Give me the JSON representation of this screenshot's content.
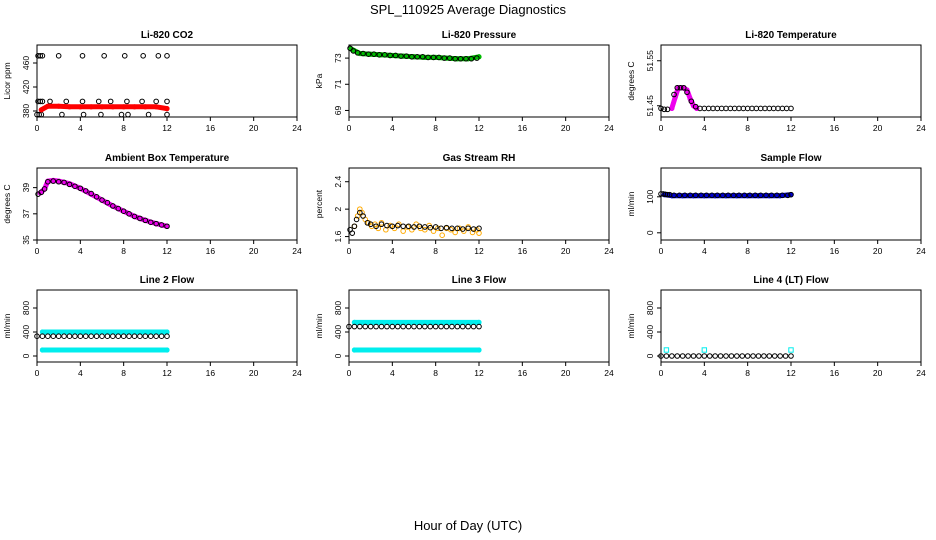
{
  "figure": {
    "title": "SPL_110925  Average Diagnostics",
    "xlabel": "Hour of Day (UTC)"
  },
  "chart_data": [
    {
      "type": "scatter",
      "title": "Li-820 CO2",
      "ylabel": "Licor ppm",
      "xlim": [
        0,
        24
      ],
      "ylim": [
        370,
        490
      ],
      "yticks": [
        380,
        420,
        460
      ],
      "xticks": [
        0,
        4,
        8,
        12,
        16,
        20,
        24
      ],
      "grid": false,
      "series": [
        {
          "color": "#000000",
          "marker": "open-circle",
          "x": [
            0.1,
            0.3,
            0.5,
            2.0,
            4.2,
            6.2,
            8.1,
            9.8,
            11.2,
            12.0
          ],
          "y": [
            472,
            472,
            472,
            472,
            472,
            472,
            472,
            472,
            472,
            472
          ]
        },
        {
          "color": "#000000",
          "marker": "open-circle",
          "x": [
            0.1,
            0.3,
            0.5,
            1.2,
            2.7,
            4.2,
            5.7,
            6.8,
            8.3,
            9.7,
            11.0,
            12.0
          ],
          "y": [
            396,
            396,
            396,
            396,
            396,
            396,
            396,
            396,
            396,
            396,
            396,
            396
          ]
        },
        {
          "color": "#000000",
          "marker": "open-circle",
          "x": [
            0.0,
            0.2,
            0.4,
            2.3,
            4.3,
            5.9,
            7.8,
            8.4,
            10.3,
            12.0
          ],
          "y": [
            374,
            374,
            374,
            374,
            374,
            374,
            374,
            374,
            374,
            374
          ]
        },
        {
          "color": "#ff0000",
          "marker": "filled-line",
          "x": [
            0.4,
            1.0,
            2.0,
            3.0,
            4.0,
            5.0,
            6.0,
            7.0,
            8.0,
            9.0,
            10.0,
            11.0,
            12.0
          ],
          "y": [
            382,
            388,
            388,
            387,
            387,
            387,
            387,
            387,
            387,
            387,
            387,
            387,
            384
          ]
        }
      ]
    },
    {
      "type": "scatter",
      "title": "Li-820 Pressure",
      "ylabel": "kPa",
      "xlim": [
        0,
        24
      ],
      "ylim": [
        68.5,
        74
      ],
      "yticks": [
        69,
        71,
        73
      ],
      "xticks": [
        0,
        4,
        8,
        12,
        16,
        20,
        24
      ],
      "grid": false,
      "series": [
        {
          "color": "#00bb00",
          "marker": "filled-line",
          "x": [
            0.2,
            1.0,
            2.0,
            3.0,
            4.0,
            5.0,
            6.0,
            7.0,
            8.0,
            9.0,
            10.0,
            11.0,
            12.0
          ],
          "y": [
            73.7,
            73.35,
            73.3,
            73.25,
            73.2,
            73.15,
            73.1,
            73.05,
            73.05,
            73.0,
            72.95,
            72.95,
            73.1
          ]
        },
        {
          "color": "#000000",
          "marker": "open-circle",
          "x": [
            0.1,
            0.4,
            0.8,
            1.3,
            1.8,
            2.3,
            2.8,
            3.3,
            3.8,
            4.3,
            4.8,
            5.3,
            5.8,
            6.3,
            6.8,
            7.3,
            7.8,
            8.3,
            8.8,
            9.3,
            9.8,
            10.3,
            10.8,
            11.3,
            11.8
          ],
          "y": [
            73.75,
            73.55,
            73.4,
            73.35,
            73.3,
            73.3,
            73.25,
            73.25,
            73.2,
            73.2,
            73.15,
            73.15,
            73.1,
            73.1,
            73.1,
            73.05,
            73.05,
            73.05,
            73.0,
            73.0,
            72.95,
            72.95,
            72.95,
            72.95,
            73.0
          ]
        }
      ]
    },
    {
      "type": "scatter",
      "title": "Li-820 Temperature",
      "ylabel": "degrees C",
      "xlim": [
        0,
        24
      ],
      "ylim": [
        51.425,
        51.585
      ],
      "yticks": [
        51.45,
        51.55
      ],
      "xticks": [
        0,
        4,
        8,
        12,
        16,
        20,
        24
      ],
      "grid": false,
      "series": [
        {
          "color": "#ee00ee",
          "marker": "filled-line",
          "x": [
            1.0,
            1.3,
            1.6,
            2.0,
            2.4,
            2.7,
            3.0,
            3.3
          ],
          "y": [
            51.444,
            51.468,
            51.49,
            51.49,
            51.485,
            51.465,
            51.45,
            51.444
          ]
        },
        {
          "color": "#000000",
          "marker": "open-circle",
          "x": [
            0.0,
            0.3,
            0.6,
            1.2,
            1.5,
            1.8,
            2.1,
            2.4,
            2.8,
            3.2,
            3.6,
            4.0,
            4.4,
            4.8,
            5.2,
            5.6,
            6.0,
            6.4,
            6.8,
            7.2,
            7.6,
            8.0,
            8.4,
            8.8,
            9.2,
            9.6,
            10.0,
            10.4,
            10.8,
            11.2,
            11.6,
            12.0
          ],
          "y": [
            51.444,
            51.442,
            51.442,
            51.475,
            51.49,
            51.49,
            51.49,
            51.48,
            51.46,
            51.448,
            51.444,
            51.444,
            51.444,
            51.444,
            51.444,
            51.444,
            51.444,
            51.444,
            51.444,
            51.444,
            51.444,
            51.444,
            51.444,
            51.444,
            51.444,
            51.444,
            51.444,
            51.444,
            51.444,
            51.444,
            51.444,
            51.444
          ]
        }
      ]
    },
    {
      "type": "scatter",
      "title": "Ambient Box Temperature",
      "ylabel": "degrees C",
      "xlim": [
        0,
        24
      ],
      "ylim": [
        35,
        40.5
      ],
      "yticks": [
        35,
        37,
        39
      ],
      "xticks": [
        0,
        4,
        8,
        12,
        16,
        20,
        24
      ],
      "grid": false,
      "series": [
        {
          "color": "#ee00ee",
          "marker": "filled-line",
          "x": [
            0.3,
            0.7,
            1.0,
            1.5,
            2.0,
            3.0,
            4.0,
            5.0,
            6.0,
            7.0,
            8.0,
            9.0,
            10.0,
            11.0,
            12.0
          ],
          "y": [
            38.6,
            38.9,
            39.5,
            39.55,
            39.5,
            39.3,
            38.95,
            38.5,
            38.05,
            37.6,
            37.2,
            36.8,
            36.5,
            36.25,
            36.05
          ]
        },
        {
          "color": "#000000",
          "marker": "open-circle",
          "x": [
            0.1,
            0.4,
            0.7,
            1.0,
            1.5,
            2.0,
            2.5,
            3.0,
            3.5,
            4.0,
            4.5,
            5.0,
            5.5,
            6.0,
            6.5,
            7.0,
            7.5,
            8.0,
            8.5,
            9.0,
            9.5,
            10.0,
            10.5,
            11.0,
            11.5,
            12.0
          ],
          "y": [
            38.5,
            38.65,
            38.9,
            39.45,
            39.5,
            39.45,
            39.4,
            39.25,
            39.1,
            38.95,
            38.75,
            38.55,
            38.3,
            38.05,
            37.85,
            37.6,
            37.4,
            37.2,
            37.0,
            36.8,
            36.65,
            36.5,
            36.35,
            36.25,
            36.15,
            36.05
          ]
        }
      ]
    },
    {
      "type": "scatter",
      "title": "Gas Stream RH",
      "ylabel": "percent",
      "xlim": [
        0,
        24
      ],
      "ylim": [
        1.55,
        2.6
      ],
      "yticks": [
        1.6,
        2.0,
        2.4
      ],
      "xticks": [
        0,
        4,
        8,
        12,
        16,
        20,
        24
      ],
      "grid": false,
      "series": [
        {
          "color": "#ffaa00",
          "marker": "open-circle",
          "x": [
            0.5,
            0.8,
            1.0,
            1.2,
            1.5,
            1.8,
            2.1,
            2.4,
            2.7,
            3.0,
            3.4,
            3.8,
            4.2,
            4.6,
            5.0,
            5.4,
            5.8,
            6.2,
            6.6,
            7.0,
            7.4,
            7.8,
            8.2,
            8.6,
            9.0,
            9.4,
            9.8,
            10.2,
            10.6,
            11.0,
            11.4,
            11.8,
            12.0
          ],
          "y": [
            1.75,
            1.9,
            2.0,
            1.95,
            1.85,
            1.8,
            1.75,
            1.78,
            1.72,
            1.8,
            1.7,
            1.76,
            1.72,
            1.78,
            1.68,
            1.74,
            1.7,
            1.78,
            1.72,
            1.7,
            1.76,
            1.68,
            1.72,
            1.62,
            1.72,
            1.7,
            1.66,
            1.72,
            1.68,
            1.74,
            1.66,
            1.7,
            1.65
          ]
        },
        {
          "color": "#000000",
          "marker": "open-circle",
          "x": [
            0.1,
            0.3,
            0.5,
            0.7,
            1.0,
            1.3,
            1.7,
            2.0,
            2.5,
            3.0,
            3.5,
            4.0,
            4.5,
            5.0,
            5.5,
            6.0,
            6.5,
            7.0,
            7.5,
            8.0,
            8.5,
            9.0,
            9.5,
            10.0,
            10.5,
            11.0,
            11.5,
            12.0
          ],
          "y": [
            1.7,
            1.65,
            1.75,
            1.85,
            1.95,
            1.9,
            1.8,
            1.78,
            1.75,
            1.78,
            1.76,
            1.75,
            1.76,
            1.75,
            1.75,
            1.74,
            1.75,
            1.74,
            1.73,
            1.74,
            1.72,
            1.73,
            1.72,
            1.72,
            1.71,
            1.72,
            1.71,
            1.72
          ]
        }
      ]
    },
    {
      "type": "scatter",
      "title": "Sample Flow",
      "ylabel": "ml/min",
      "xlim": [
        0,
        24
      ],
      "ylim": [
        -20,
        180
      ],
      "yticks": [
        0,
        100
      ],
      "xticks": [
        0,
        4,
        8,
        12,
        16,
        20,
        24
      ],
      "grid": false,
      "series": [
        {
          "color": "#0000cc",
          "marker": "filled-line",
          "x": [
            0.3,
            1.0,
            2.0,
            3.0,
            4.0,
            5.0,
            6.0,
            7.0,
            8.0,
            9.0,
            10.0,
            11.0,
            12.0
          ],
          "y": [
            106,
            103,
            103,
            103,
            103,
            103,
            103,
            103,
            103,
            103,
            103,
            103,
            106
          ]
        },
        {
          "color": "#000000",
          "marker": "open-circle",
          "x": [
            0.0,
            0.2,
            0.4,
            0.6,
            0.8,
            1.2,
            1.7,
            2.2,
            2.7,
            3.2,
            3.7,
            4.2,
            4.7,
            5.2,
            5.7,
            6.2,
            6.7,
            7.2,
            7.7,
            8.2,
            8.7,
            9.2,
            9.7,
            10.2,
            10.7,
            11.2,
            11.7,
            12.0
          ],
          "y": [
            108,
            108,
            107,
            106,
            106,
            104,
            104,
            104,
            104,
            104,
            104,
            104,
            104,
            104,
            104,
            104,
            104,
            104,
            104,
            104,
            104,
            104,
            104,
            104,
            104,
            104,
            104,
            106
          ]
        }
      ]
    },
    {
      "type": "scatter",
      "title": "Line 2 Flow",
      "ylabel": "ml/min",
      "xlim": [
        0,
        24
      ],
      "ylim": [
        -100,
        1100
      ],
      "yticks": [
        0,
        400,
        800
      ],
      "xticks": [
        0,
        4,
        8,
        12,
        16,
        20,
        24
      ],
      "grid": false,
      "series": [
        {
          "color": "#00eeee",
          "marker": "filled-line",
          "x": [
            0.5,
            12.0
          ],
          "y": [
            400,
            400
          ]
        },
        {
          "color": "#00eeee",
          "marker": "filled-line",
          "x": [
            0.5,
            12.0
          ],
          "y": [
            100,
            100
          ]
        },
        {
          "color": "#000000",
          "marker": "open-circle",
          "x": [
            0.0,
            0.5,
            1.0,
            1.5,
            2.0,
            2.5,
            3.0,
            3.5,
            4.0,
            4.5,
            5.0,
            5.5,
            6.0,
            6.5,
            7.0,
            7.5,
            8.0,
            8.5,
            9.0,
            9.5,
            10.0,
            10.5,
            11.0,
            11.5,
            12.0
          ],
          "y": [
            330,
            330,
            330,
            330,
            330,
            330,
            330,
            330,
            330,
            330,
            330,
            330,
            330,
            330,
            330,
            330,
            330,
            330,
            330,
            330,
            330,
            330,
            330,
            330,
            330
          ]
        }
      ]
    },
    {
      "type": "scatter",
      "title": "Line 3 Flow",
      "ylabel": "ml/min",
      "xlim": [
        0,
        24
      ],
      "ylim": [
        -100,
        1100
      ],
      "yticks": [
        0,
        400,
        800
      ],
      "xticks": [
        0,
        4,
        8,
        12,
        16,
        20,
        24
      ],
      "grid": false,
      "series": [
        {
          "color": "#00eeee",
          "marker": "filled-line",
          "x": [
            0.5,
            12.0
          ],
          "y": [
            560,
            560
          ]
        },
        {
          "color": "#00eeee",
          "marker": "filled-line",
          "x": [
            0.5,
            12.0
          ],
          "y": [
            100,
            100
          ]
        },
        {
          "color": "#000000",
          "marker": "open-circle",
          "x": [
            0.0,
            0.5,
            1.0,
            1.5,
            2.0,
            2.5,
            3.0,
            3.5,
            4.0,
            4.5,
            5.0,
            5.5,
            6.0,
            6.5,
            7.0,
            7.5,
            8.0,
            8.5,
            9.0,
            9.5,
            10.0,
            10.5,
            11.0,
            11.5,
            12.0
          ],
          "y": [
            490,
            490,
            490,
            490,
            490,
            490,
            490,
            490,
            490,
            490,
            490,
            490,
            490,
            490,
            490,
            490,
            490,
            490,
            490,
            490,
            490,
            490,
            490,
            490,
            490
          ]
        }
      ]
    },
    {
      "type": "scatter",
      "title": "Line 4 (LT) Flow",
      "ylabel": "ml/min",
      "xlim": [
        0,
        24
      ],
      "ylim": [
        -100,
        1100
      ],
      "yticks": [
        0,
        400,
        800
      ],
      "xticks": [
        0,
        4,
        8,
        12,
        16,
        20,
        24
      ],
      "grid": false,
      "series": [
        {
          "color": "#00eeee",
          "marker": "open-square",
          "x": [
            0.5,
            4.0,
            12.0
          ],
          "y": [
            100,
            100,
            100
          ]
        },
        {
          "color": "#000000",
          "marker": "open-circle",
          "x": [
            0.0,
            0.5,
            1.0,
            1.5,
            2.0,
            2.5,
            3.0,
            3.5,
            4.0,
            4.5,
            5.0,
            5.5,
            6.0,
            6.5,
            7.0,
            7.5,
            8.0,
            8.5,
            9.0,
            9.5,
            10.0,
            10.5,
            11.0,
            11.5,
            12.0
          ],
          "y": [
            0,
            0,
            0,
            0,
            0,
            0,
            0,
            0,
            0,
            0,
            0,
            0,
            0,
            0,
            0,
            0,
            0,
            0,
            0,
            0,
            0,
            0,
            0,
            0,
            0
          ]
        }
      ]
    }
  ]
}
